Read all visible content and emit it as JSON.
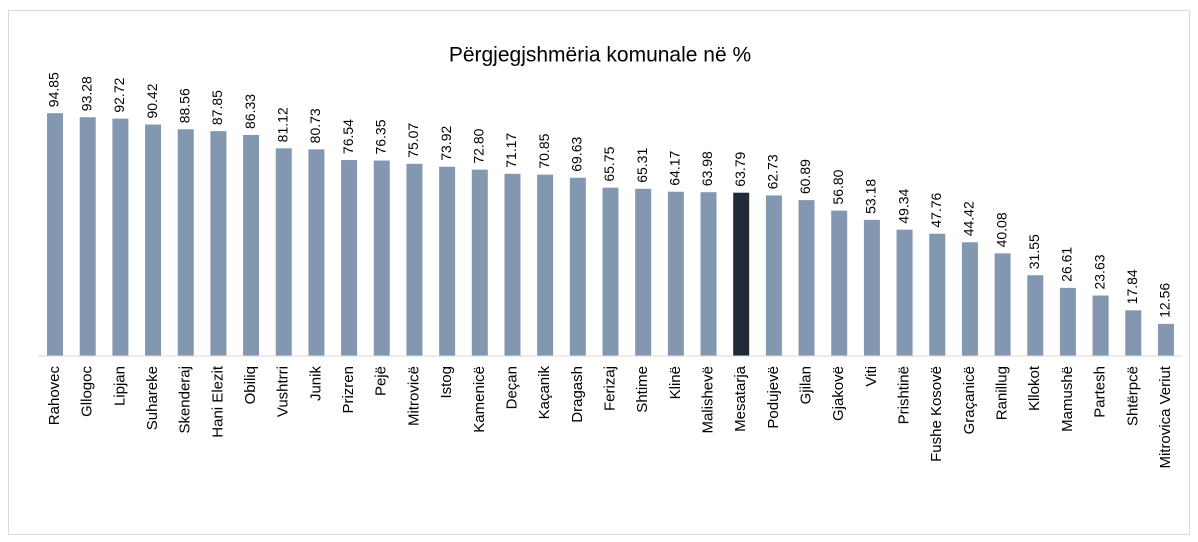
{
  "chart_data": {
    "type": "bar",
    "title": "Përgjegjshmëria komunale në %",
    "categories": [
      "Rahovec",
      "Gllogoc",
      "Lipjan",
      "Suhareke",
      "Skenderaj",
      "Hani Elezit",
      "Obiliq",
      "Vushtrri",
      "Junik",
      "Prizren",
      "Pejë",
      "Mitrovicë",
      "Istog",
      "Kamenicë",
      "Deçan",
      "Kaçanik",
      "Dragash",
      "Ferizaj",
      "Shtime",
      "Klinë",
      "Malishevë",
      "Mesatarja",
      "Podujevë",
      "Gjilan",
      "Gjakovë",
      "Viti",
      "Prishtinë",
      "Fushe Kosovë",
      "Graçanicë",
      "Ranillug",
      "Kllokot",
      "Mamushë",
      "Partesh",
      "Shtërpcë",
      "Mitrovica Veriut"
    ],
    "values": [
      94.85,
      93.28,
      92.72,
      90.42,
      88.56,
      87.85,
      86.33,
      81.12,
      80.73,
      76.54,
      76.35,
      75.07,
      73.92,
      72.8,
      71.17,
      70.85,
      69.63,
      65.75,
      65.31,
      64.17,
      63.98,
      63.79,
      62.73,
      60.89,
      56.8,
      53.18,
      49.34,
      47.76,
      44.42,
      40.08,
      31.55,
      26.61,
      23.63,
      17.84,
      12.56
    ],
    "value_labels": [
      "94.85",
      "93.28",
      "92.72",
      "90.42",
      "88.56",
      "87.85",
      "86.33",
      "81.12",
      "80.73",
      "76.54",
      "76.35",
      "75.07",
      "73.92",
      "72.80",
      "71.17",
      "70.85",
      "69.63",
      "65.75",
      "65.31",
      "64.17",
      "63.98",
      "63.79",
      "62.73",
      "60.89",
      "56.80",
      "53.18",
      "49.34",
      "47.76",
      "44.42",
      "40.08",
      "31.55",
      "26.61",
      "23.63",
      "17.84",
      "12.56"
    ],
    "colors": [
      "#8497b0",
      "#8497b0",
      "#8497b0",
      "#8497b0",
      "#8497b0",
      "#8497b0",
      "#8497b0",
      "#8497b0",
      "#8497b0",
      "#8497b0",
      "#8497b0",
      "#8497b0",
      "#8497b0",
      "#8497b0",
      "#8497b0",
      "#8497b0",
      "#8497b0",
      "#8497b0",
      "#8497b0",
      "#8497b0",
      "#8497b0",
      "#222a35",
      "#8497b0",
      "#8497b0",
      "#8497b0",
      "#8497b0",
      "#8497b0",
      "#8497b0",
      "#8497b0",
      "#8497b0",
      "#8497b0",
      "#8497b0",
      "#8497b0",
      "#8497b0",
      "#8497b0"
    ],
    "ylim": [
      0,
      100
    ]
  }
}
